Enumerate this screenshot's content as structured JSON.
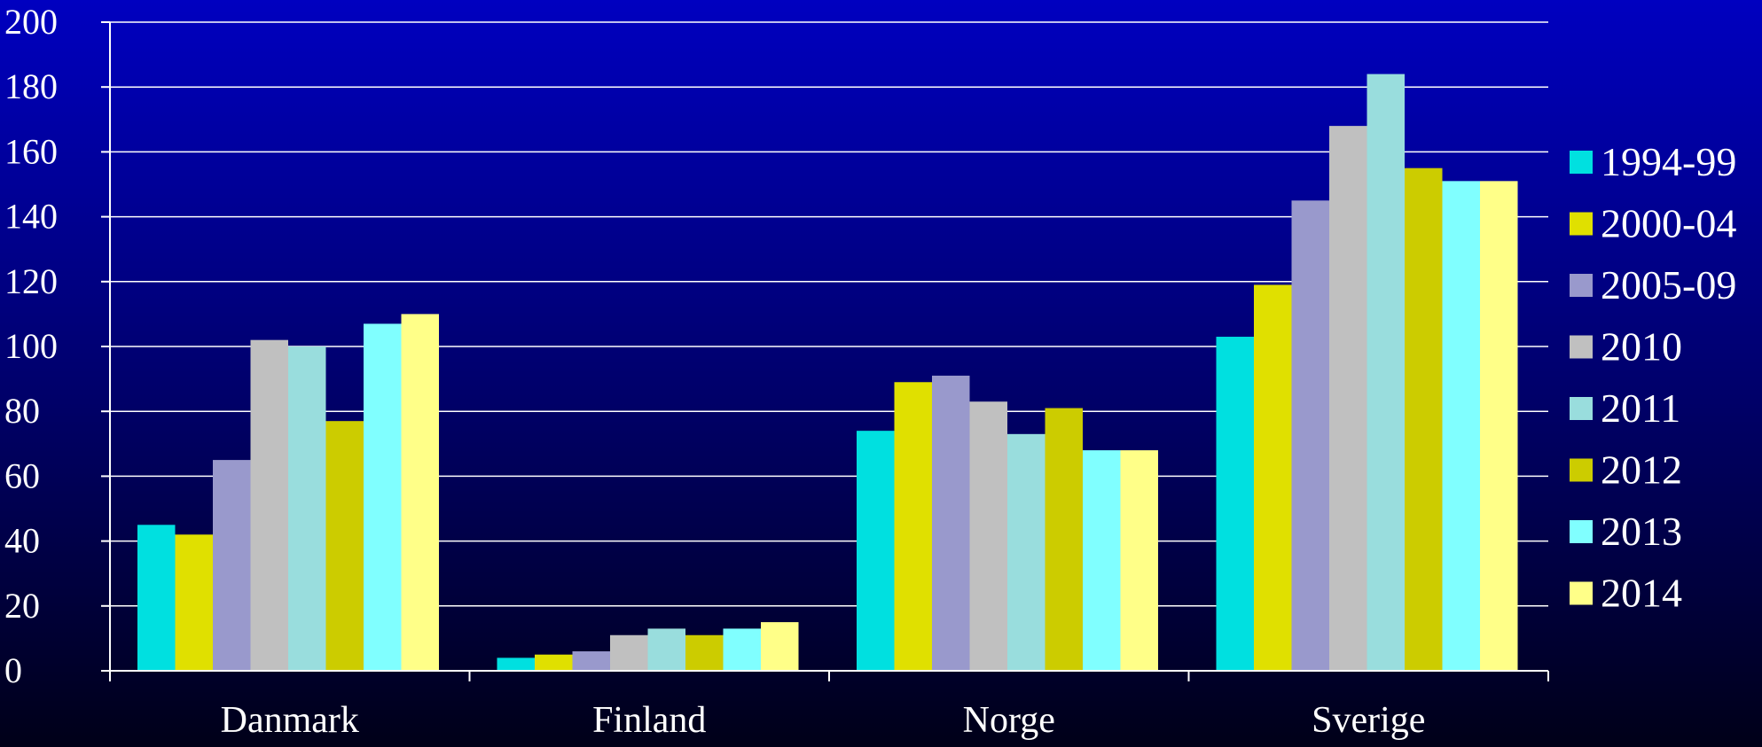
{
  "chart_data": {
    "type": "bar",
    "categories": [
      "Danmark",
      "Finland",
      "Norge",
      "Sverige"
    ],
    "series": [
      {
        "name": "1994-99",
        "color": "#00e0e0",
        "values": [
          45,
          4,
          74,
          103
        ]
      },
      {
        "name": "2000-04",
        "color": "#e0e000",
        "values": [
          42,
          5,
          89,
          119
        ]
      },
      {
        "name": "2005-09",
        "color": "#9999cc",
        "values": [
          65,
          6,
          91,
          145
        ]
      },
      {
        "name": "2010",
        "color": "#c0c0c0",
        "values": [
          102,
          11,
          83,
          168
        ]
      },
      {
        "name": "2011",
        "color": "#99dddd",
        "values": [
          100,
          13,
          73,
          184
        ]
      },
      {
        "name": "2012",
        "color": "#cccc00",
        "values": [
          77,
          11,
          81,
          155
        ]
      },
      {
        "name": "2013",
        "color": "#80ffff",
        "values": [
          107,
          13,
          68,
          151
        ]
      },
      {
        "name": "2014",
        "color": "#ffff88",
        "values": [
          110,
          15,
          68,
          151
        ]
      }
    ],
    "yticks": [
      "0",
      "20",
      "40",
      "60",
      "80",
      "100",
      "120",
      "140",
      "160",
      "180",
      "200"
    ],
    "ylim": [
      0,
      200
    ],
    "grid": true,
    "legend": "right",
    "title": "",
    "xlabel": "",
    "ylabel": ""
  }
}
